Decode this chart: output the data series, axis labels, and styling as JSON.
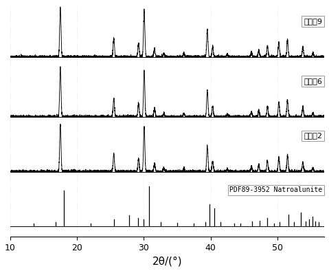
{
  "xmin": 10,
  "xmax": 57,
  "xlabel": "2θ/(°)",
  "background_color": "#ffffff",
  "labels": [
    "实施例9",
    "实施例6",
    "实施例2",
    "PDF89-3952 Natroalunite"
  ],
  "peaks_2theta": [
    17.5,
    25.5,
    29.2,
    30.05,
    31.6,
    33.0,
    36.0,
    39.5,
    40.3,
    42.5,
    46.1,
    47.2,
    48.5,
    50.2,
    51.5,
    53.8,
    55.3
  ],
  "peaks_heights": [
    1.0,
    0.38,
    0.28,
    0.95,
    0.18,
    0.07,
    0.07,
    0.55,
    0.22,
    0.06,
    0.1,
    0.14,
    0.22,
    0.3,
    0.35,
    0.2,
    0.08
  ],
  "ref_peaks_2theta": [
    13.5,
    16.8,
    18.0,
    22.0,
    25.5,
    27.8,
    29.1,
    30.0,
    30.8,
    32.5,
    35.0,
    37.5,
    39.2,
    39.8,
    40.5,
    41.5,
    43.5,
    44.5,
    46.2,
    47.3,
    48.5,
    49.5,
    50.3,
    51.6,
    52.5,
    53.5,
    54.2,
    54.7,
    55.2,
    55.7,
    56.2
  ],
  "ref_heights": [
    0.08,
    0.1,
    0.9,
    0.08,
    0.18,
    0.28,
    0.22,
    0.18,
    1.0,
    0.1,
    0.09,
    0.08,
    0.1,
    0.55,
    0.45,
    0.1,
    0.08,
    0.07,
    0.12,
    0.15,
    0.22,
    0.08,
    0.1,
    0.3,
    0.1,
    0.35,
    0.12,
    0.18,
    0.25,
    0.12,
    0.1
  ],
  "sigma": 0.1,
  "noise": 0.003,
  "pattern_offsets": [
    0.68,
    0.44,
    0.22,
    0.0
  ],
  "pattern_scale": 0.2,
  "ref_scale": 0.16,
  "line_color": "#000000",
  "tick_fontsize": 9,
  "label_fontsize": 11,
  "label_text_fontsize": 8,
  "pdf_label_fontsize": 7
}
